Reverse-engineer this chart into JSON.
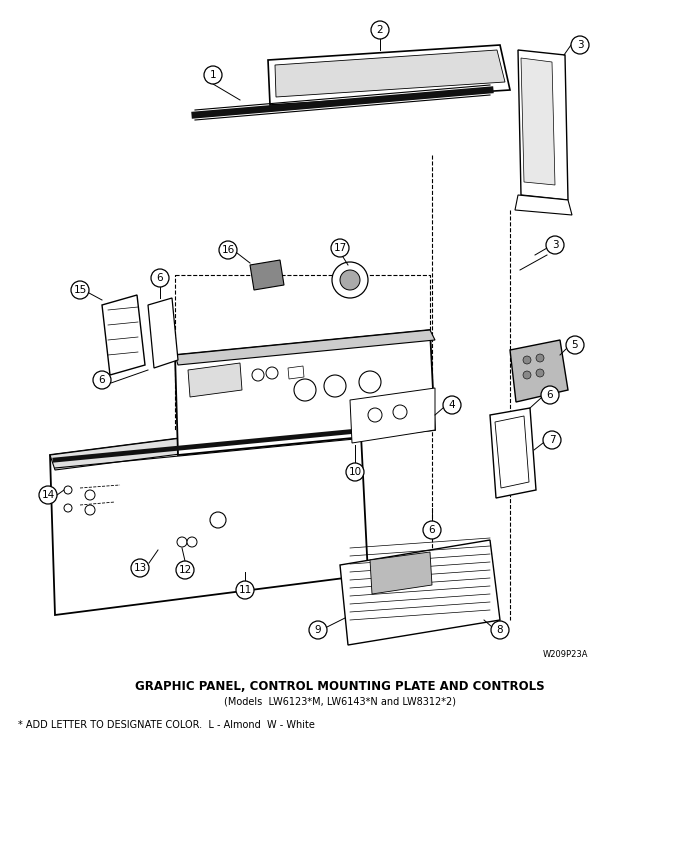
{
  "title1": "GRAPHIC PANEL, CONTROL MOUNTING PLATE AND CONTROLS",
  "title2": "(Models  LW6123*M, LW6143*N and LW8312*2)",
  "note": "* ADD LETTER TO DESIGNATE COLOR.  L - Almond  W - White",
  "watermark": "W209P23A",
  "bg_color": "#ffffff",
  "title1_fontsize": 8.5,
  "title2_fontsize": 7,
  "note_fontsize": 7,
  "wm_fontsize": 6
}
